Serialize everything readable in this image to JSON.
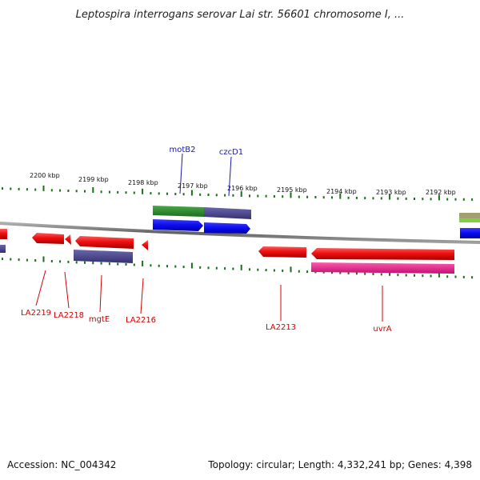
{
  "title": "Leptospira interrogans serovar Lai str. 56601 chromosome I, ...",
  "ticks": [
    "2200 kbp",
    "2199 kbp",
    "2198 kbp",
    "2197 kbp",
    "2196 kbp",
    "2195 kbp",
    "2194 kbp",
    "2193 kbp",
    "2192 kbp"
  ],
  "genes_top": [
    "motB2",
    "czcD1"
  ],
  "genes_bottom": [
    "LA2219",
    "LA2218",
    "mgtE",
    "LA2216",
    "LA2213",
    "uvrA"
  ],
  "footer": {
    "accession": "Accession: NC_004342",
    "topology": "Topology: circular; Length: 4,332,241 bp; Genes: 4,398"
  },
  "colors": {
    "gene_forward": "#1010e0",
    "gene_reverse": "#e01010",
    "track_green": "#2f8a2f",
    "track_purple": "#4b4790",
    "track_magenta": "#e0208a",
    "track_olive": "#a0a070",
    "track_lime": "#80d040",
    "backbone": "#808080",
    "tick": "#1a6e1a",
    "label_top": "#1a1aa0",
    "label_bottom": "#d40000"
  }
}
